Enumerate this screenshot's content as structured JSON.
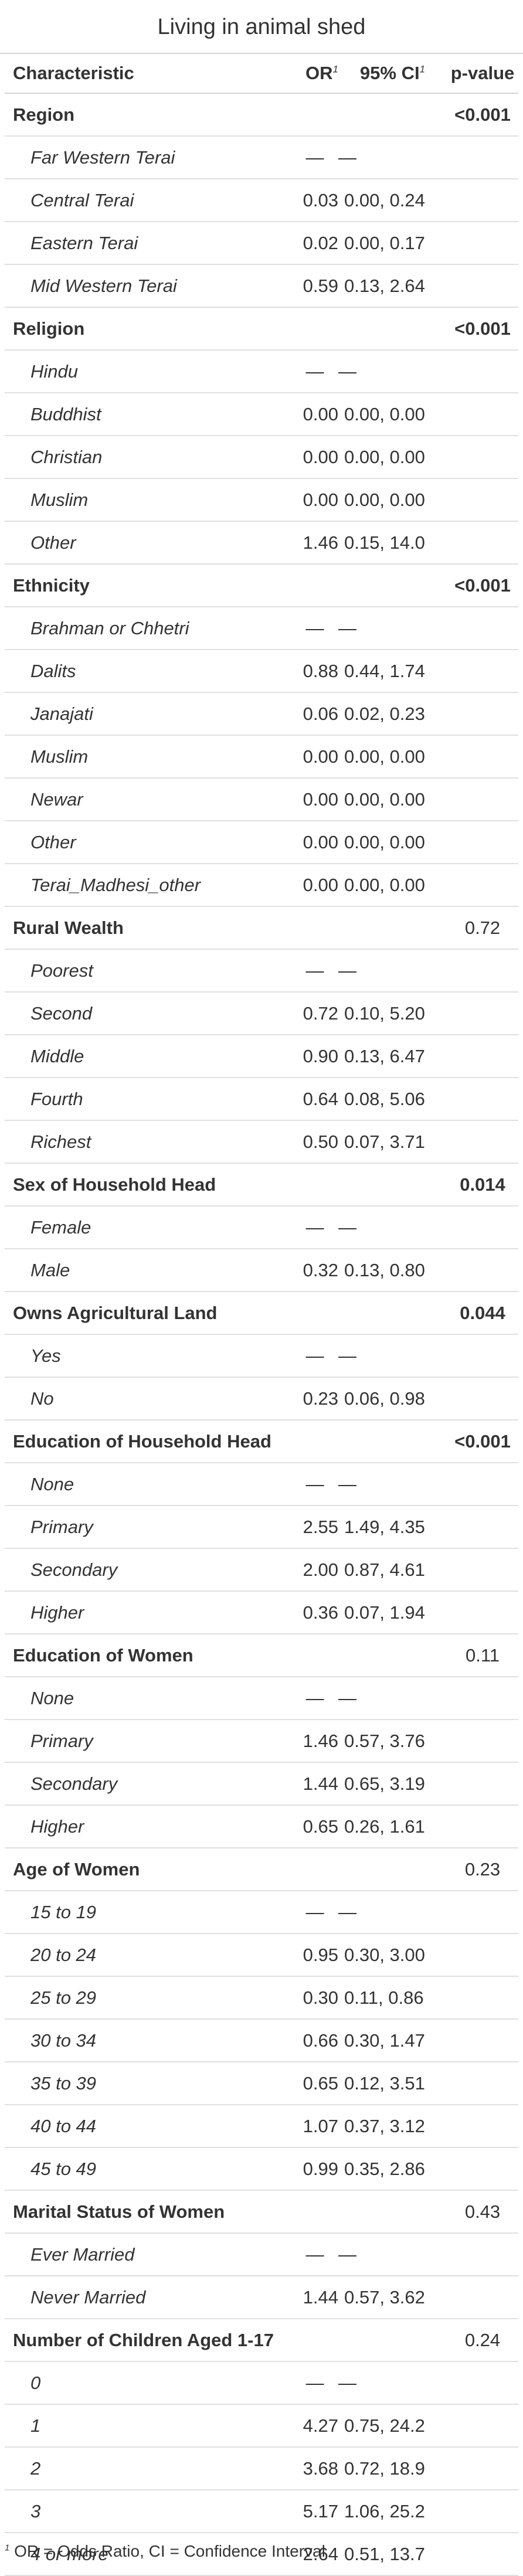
{
  "title": "Living in animal shed",
  "columns": {
    "characteristic": "Characteristic",
    "or": "OR",
    "ci": "95% CI",
    "p": "p-value",
    "footnote_mark": "1"
  },
  "footnote": "OR = Odds Ratio, CI = Confidence Interval",
  "rows": [
    {
      "type": "hdr",
      "label": "Region",
      "or": "",
      "ci": "",
      "p": "<0.001",
      "bold": true
    },
    {
      "type": "lvl",
      "label": "Far Western Terai",
      "or": "—",
      "ci": "—",
      "p": ""
    },
    {
      "type": "lvl",
      "label": "Central Terai",
      "or": "0.03",
      "ci": "0.00, 0.24",
      "p": ""
    },
    {
      "type": "lvl",
      "label": "Eastern Terai",
      "or": "0.02",
      "ci": "0.00, 0.17",
      "p": ""
    },
    {
      "type": "lvl",
      "label": "Mid Western Terai",
      "or": "0.59",
      "ci": "0.13, 2.64",
      "p": ""
    },
    {
      "type": "hdr",
      "label": "Religion",
      "or": "",
      "ci": "",
      "p": "<0.001",
      "bold": true
    },
    {
      "type": "lvl",
      "label": "Hindu",
      "or": "—",
      "ci": "—",
      "p": ""
    },
    {
      "type": "lvl",
      "label": "Buddhist",
      "or": "0.00",
      "ci": "0.00, 0.00",
      "p": ""
    },
    {
      "type": "lvl",
      "label": "Christian",
      "or": "0.00",
      "ci": "0.00, 0.00",
      "p": ""
    },
    {
      "type": "lvl",
      "label": "Muslim",
      "or": "0.00",
      "ci": "0.00, 0.00",
      "p": ""
    },
    {
      "type": "lvl",
      "label": "Other",
      "or": "1.46",
      "ci": "0.15, 14.0",
      "p": ""
    },
    {
      "type": "hdr",
      "label": "Ethnicity",
      "or": "",
      "ci": "",
      "p": "<0.001",
      "bold": true
    },
    {
      "type": "lvl",
      "label": "Brahman or Chhetri",
      "or": "—",
      "ci": "—",
      "p": ""
    },
    {
      "type": "lvl",
      "label": "Dalits",
      "or": "0.88",
      "ci": "0.44, 1.74",
      "p": ""
    },
    {
      "type": "lvl",
      "label": "Janajati",
      "or": "0.06",
      "ci": "0.02, 0.23",
      "p": ""
    },
    {
      "type": "lvl",
      "label": "Muslim",
      "or": "0.00",
      "ci": "0.00, 0.00",
      "p": ""
    },
    {
      "type": "lvl",
      "label": "Newar",
      "or": "0.00",
      "ci": "0.00, 0.00",
      "p": ""
    },
    {
      "type": "lvl",
      "label": "Other",
      "or": "0.00",
      "ci": "0.00, 0.00",
      "p": ""
    },
    {
      "type": "lvl",
      "label": "Terai_Madhesi_other",
      "or": "0.00",
      "ci": "0.00, 0.00",
      "p": ""
    },
    {
      "type": "hdr",
      "label": "Rural Wealth",
      "or": "",
      "ci": "",
      "p": "0.72",
      "bold": false
    },
    {
      "type": "lvl",
      "label": "Poorest",
      "or": "—",
      "ci": "—",
      "p": ""
    },
    {
      "type": "lvl",
      "label": "Second",
      "or": "0.72",
      "ci": "0.10, 5.20",
      "p": ""
    },
    {
      "type": "lvl",
      "label": "Middle",
      "or": "0.90",
      "ci": "0.13, 6.47",
      "p": ""
    },
    {
      "type": "lvl",
      "label": "Fourth",
      "or": "0.64",
      "ci": "0.08, 5.06",
      "p": ""
    },
    {
      "type": "lvl",
      "label": "Richest",
      "or": "0.50",
      "ci": "0.07, 3.71",
      "p": ""
    },
    {
      "type": "hdr",
      "label": "Sex of Household Head",
      "or": "",
      "ci": "",
      "p": "0.014",
      "bold": true
    },
    {
      "type": "lvl",
      "label": "Female",
      "or": "—",
      "ci": "—",
      "p": ""
    },
    {
      "type": "lvl",
      "label": "Male",
      "or": "0.32",
      "ci": "0.13, 0.80",
      "p": ""
    },
    {
      "type": "hdr",
      "label": "Owns Agricultural Land",
      "or": "",
      "ci": "",
      "p": "0.044",
      "bold": true
    },
    {
      "type": "lvl",
      "label": "Yes",
      "or": "—",
      "ci": "—",
      "p": ""
    },
    {
      "type": "lvl",
      "label": "No",
      "or": "0.23",
      "ci": "0.06, 0.98",
      "p": ""
    },
    {
      "type": "hdr",
      "label": "Education of Household Head",
      "or": "",
      "ci": "",
      "p": "<0.001",
      "bold": true
    },
    {
      "type": "lvl",
      "label": "None",
      "or": "—",
      "ci": "—",
      "p": ""
    },
    {
      "type": "lvl",
      "label": "Primary",
      "or": "2.55",
      "ci": "1.49, 4.35",
      "p": ""
    },
    {
      "type": "lvl",
      "label": "Secondary",
      "or": "2.00",
      "ci": "0.87, 4.61",
      "p": ""
    },
    {
      "type": "lvl",
      "label": "Higher",
      "or": "0.36",
      "ci": "0.07, 1.94",
      "p": ""
    },
    {
      "type": "hdr",
      "label": "Education of Women",
      "or": "",
      "ci": "",
      "p": "0.11",
      "bold": false
    },
    {
      "type": "lvl",
      "label": "None",
      "or": "—",
      "ci": "—",
      "p": ""
    },
    {
      "type": "lvl",
      "label": "Primary",
      "or": "1.46",
      "ci": "0.57, 3.76",
      "p": ""
    },
    {
      "type": "lvl",
      "label": "Secondary",
      "or": "1.44",
      "ci": "0.65, 3.19",
      "p": ""
    },
    {
      "type": "lvl",
      "label": "Higher",
      "or": "0.65",
      "ci": "0.26, 1.61",
      "p": ""
    },
    {
      "type": "hdr",
      "label": "Age of Women",
      "or": "",
      "ci": "",
      "p": "0.23",
      "bold": false
    },
    {
      "type": "lvl",
      "label": "15 to 19",
      "or": "—",
      "ci": "—",
      "p": ""
    },
    {
      "type": "lvl",
      "label": "20 to 24",
      "or": "0.95",
      "ci": "0.30, 3.00",
      "p": ""
    },
    {
      "type": "lvl",
      "label": "25 to 29",
      "or": "0.30",
      "ci": "0.11, 0.86",
      "p": ""
    },
    {
      "type": "lvl",
      "label": "30 to 34",
      "or": "0.66",
      "ci": "0.30, 1.47",
      "p": ""
    },
    {
      "type": "lvl",
      "label": "35 to 39",
      "or": "0.65",
      "ci": "0.12, 3.51",
      "p": ""
    },
    {
      "type": "lvl",
      "label": "40 to 44",
      "or": "1.07",
      "ci": "0.37, 3.12",
      "p": ""
    },
    {
      "type": "lvl",
      "label": "45 to 49",
      "or": "0.99",
      "ci": "0.35, 2.86",
      "p": ""
    },
    {
      "type": "hdr",
      "label": "Marital Status of Women",
      "or": "",
      "ci": "",
      "p": "0.43",
      "bold": false
    },
    {
      "type": "lvl",
      "label": "Ever Married",
      "or": "—",
      "ci": "—",
      "p": ""
    },
    {
      "type": "lvl",
      "label": "Never Married",
      "or": "1.44",
      "ci": "0.57, 3.62",
      "p": ""
    },
    {
      "type": "hdr",
      "label": "Number of Children Aged 1-17",
      "or": "",
      "ci": "",
      "p": "0.24",
      "bold": false
    },
    {
      "type": "lvl",
      "label": "0",
      "or": "—",
      "ci": "—",
      "p": ""
    },
    {
      "type": "lvl",
      "label": "1",
      "or": "4.27",
      "ci": "0.75, 24.2",
      "p": ""
    },
    {
      "type": "lvl",
      "label": "2",
      "or": "3.68",
      "ci": "0.72, 18.9",
      "p": ""
    },
    {
      "type": "lvl",
      "label": "3",
      "or": "5.17",
      "ci": "1.06, 25.2",
      "p": ""
    },
    {
      "type": "lvl",
      "label": "4 or more",
      "or": "2.64",
      "ci": "0.51, 13.7",
      "p": ""
    }
  ]
}
